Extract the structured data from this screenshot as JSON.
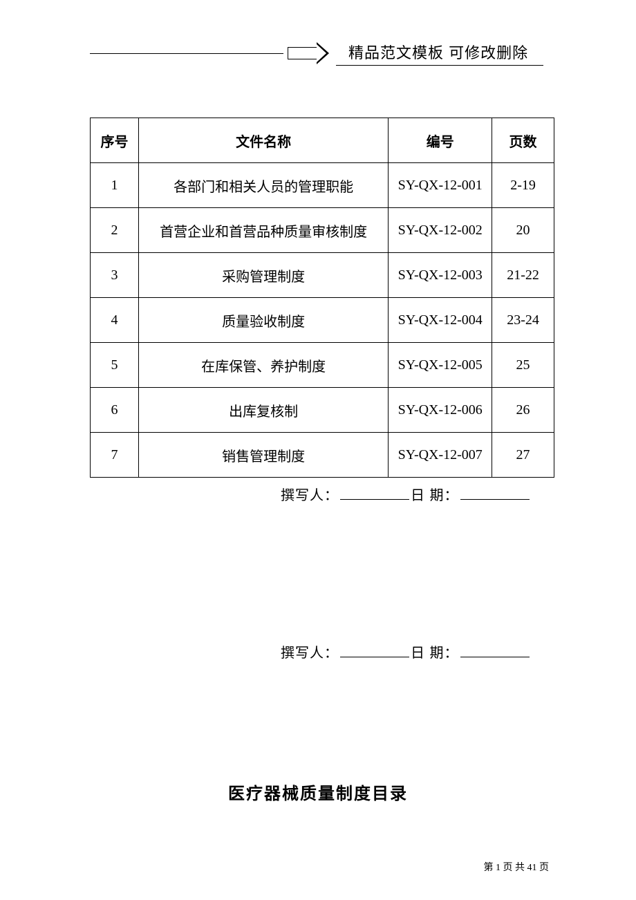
{
  "header": {
    "banner_text": "精品范文模板  可修改删除"
  },
  "table": {
    "columns": {
      "seq": "序号",
      "name": "文件名称",
      "code": "编号",
      "page": "页数"
    },
    "rows": [
      {
        "seq": "1",
        "name": "各部门和相关人员的管理职能",
        "code": "SY-QX-12-001",
        "page": "2-19"
      },
      {
        "seq": "2",
        "name": "首营企业和首营品种质量审核制度",
        "code": "SY-QX-12-002",
        "page": "20"
      },
      {
        "seq": "3",
        "name": "采购管理制度",
        "code": "SY-QX-12-003",
        "page": "21-22"
      },
      {
        "seq": "4",
        "name": "质量验收制度",
        "code": "SY-QX-12-004",
        "page": "23-24"
      },
      {
        "seq": "5",
        "name": "在库保管、养护制度",
        "code": "SY-QX-12-005",
        "page": "25"
      },
      {
        "seq": "6",
        "name": "出库复核制",
        "code": "SY-QX-12-006",
        "page": "26"
      },
      {
        "seq": "7",
        "name": "销售管理制度",
        "code": "SY-QX-12-007",
        "page": "27"
      }
    ]
  },
  "signatures": {
    "author_label": "撰写人：",
    "date_label": "日  期："
  },
  "title": "医疗器械质量制度目录",
  "footer": {
    "prefix": "第 ",
    "current": "1",
    "middle": " 页 共 ",
    "total": "41",
    "suffix": " 页"
  }
}
